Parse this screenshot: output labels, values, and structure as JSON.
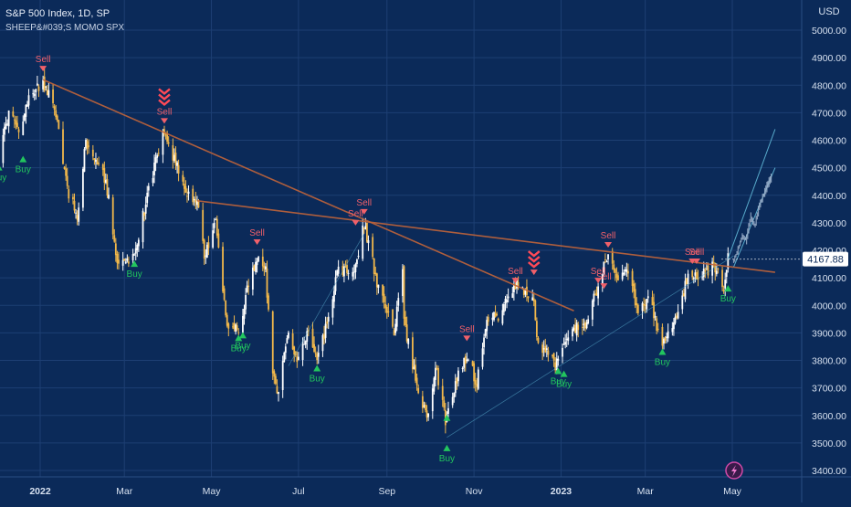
{
  "legend": {
    "title": "S&P 500 Index, 1D, SP",
    "indicator": "SHEEP&#039;S MOMO SPX"
  },
  "price_axis": {
    "currency": "USD",
    "last_price": "4167.88"
  },
  "colors": {
    "background": "#0b2a59",
    "grid": "#1d3f73",
    "up_candle": "#ffffff",
    "down_candle": "#f2b84b",
    "trendline": "#c0643a",
    "channel": "#5fb7d6",
    "buy": "#22c55e",
    "sell": "#f0606a",
    "last_price_tag": "#ffffff"
  },
  "icons": {
    "bottom_badge": "lightning-bolt-icon"
  },
  "chart_data": {
    "type": "candlestick",
    "title": "S&P 500 Index, 1D, SP",
    "ylim": [
      3350,
      5080
    ],
    "yticks": [
      3400,
      3500,
      3600,
      3700,
      3800,
      3900,
      4000,
      4100,
      4200,
      4300,
      4400,
      4500,
      4600,
      4700,
      4800,
      4900,
      5000
    ],
    "ytick_labels": [
      "3400.00",
      "3500.00",
      "3600.00",
      "3700.00",
      "3800.00",
      "3900.00",
      "4000.00",
      "4100.00",
      "4200.00",
      "4300.00",
      "4400.00",
      "4500.00",
      "4600.00",
      "4700.00",
      "4800.00",
      "4900.00",
      "5000.00"
    ],
    "x_range": [
      "2021-12-03",
      "2023-05-31"
    ],
    "x_tick_labels": [
      {
        "date": "2022-01-01",
        "label": "2022"
      },
      {
        "date": "2022-03-01",
        "label": "Mar"
      },
      {
        "date": "2022-05-01",
        "label": "May"
      },
      {
        "date": "2022-07-01",
        "label": "Jul"
      },
      {
        "date": "2022-09-01",
        "label": "Sep"
      },
      {
        "date": "2022-11-01",
        "label": "Nov"
      },
      {
        "date": "2023-01-01",
        "label": "2023"
      },
      {
        "date": "2023-03-01",
        "label": "Mar"
      },
      {
        "date": "2023-05-01",
        "label": "May"
      }
    ],
    "price_path": [
      [
        "2021-12-03",
        4540
      ],
      [
        "2021-12-10",
        4700
      ],
      [
        "2021-12-17",
        4620
      ],
      [
        "2021-12-24",
        4760
      ],
      [
        "2022-01-03",
        4810
      ],
      [
        "2022-01-12",
        4700
      ],
      [
        "2022-01-21",
        4400
      ],
      [
        "2022-01-27",
        4330
      ],
      [
        "2022-02-02",
        4590
      ],
      [
        "2022-02-10",
        4500
      ],
      [
        "2022-02-16",
        4460
      ],
      [
        "2022-02-24",
        4150
      ],
      [
        "2022-03-08",
        4180
      ],
      [
        "2022-03-18",
        4420
      ],
      [
        "2022-03-29",
        4630
      ],
      [
        "2022-04-08",
        4490
      ],
      [
        "2022-04-14",
        4400
      ],
      [
        "2022-04-21",
        4390
      ],
      [
        "2022-04-26",
        4180
      ],
      [
        "2022-05-04",
        4300
      ],
      [
        "2022-05-12",
        3930
      ],
      [
        "2022-05-20",
        3900
      ],
      [
        "2022-05-26",
        4060
      ],
      [
        "2022-06-02",
        4170
      ],
      [
        "2022-06-08",
        4120
      ],
      [
        "2022-06-13",
        3750
      ],
      [
        "2022-06-16",
        3670
      ],
      [
        "2022-06-24",
        3910
      ],
      [
        "2022-06-30",
        3790
      ],
      [
        "2022-07-08",
        3900
      ],
      [
        "2022-07-14",
        3790
      ],
      [
        "2022-07-22",
        3960
      ],
      [
        "2022-07-29",
        4130
      ],
      [
        "2022-08-09",
        4120
      ],
      [
        "2022-08-16",
        4300
      ],
      [
        "2022-08-19",
        4230
      ],
      [
        "2022-08-26",
        4060
      ],
      [
        "2022-09-06",
        3910
      ],
      [
        "2022-09-12",
        4110
      ],
      [
        "2022-09-13",
        3930
      ],
      [
        "2022-09-23",
        3690
      ],
      [
        "2022-09-30",
        3590
      ],
      [
        "2022-10-05",
        3780
      ],
      [
        "2022-10-12",
        3580
      ],
      [
        "2022-10-21",
        3750
      ],
      [
        "2022-10-27",
        3810
      ],
      [
        "2022-11-03",
        3720
      ],
      [
        "2022-11-10",
        3960
      ],
      [
        "2022-11-17",
        3950
      ],
      [
        "2022-11-25",
        4030
      ],
      [
        "2022-12-01",
        4080
      ],
      [
        "2022-12-13",
        4020
      ],
      [
        "2022-12-16",
        3850
      ],
      [
        "2022-12-22",
        3830
      ],
      [
        "2022-12-28",
        3780
      ],
      [
        "2023-01-06",
        3900
      ],
      [
        "2023-01-18",
        3930
      ],
      [
        "2023-01-24",
        4020
      ],
      [
        "2023-02-02",
        4180
      ],
      [
        "2023-02-10",
        4090
      ],
      [
        "2023-02-15",
        4150
      ],
      [
        "2023-02-24",
        3970
      ],
      [
        "2023-03-03",
        4040
      ],
      [
        "2023-03-09",
        3920
      ],
      [
        "2023-03-13",
        3850
      ],
      [
        "2023-03-22",
        3940
      ],
      [
        "2023-03-31",
        4110
      ],
      [
        "2023-04-10",
        4110
      ],
      [
        "2023-04-18",
        4150
      ],
      [
        "2023-04-25",
        4070
      ],
      [
        "2023-04-28",
        4170
      ]
    ],
    "trendlines": [
      {
        "name": "long-downtrend",
        "from": [
          "2022-01-03",
          4820
        ],
        "to": [
          "2023-01-10",
          3980
        ]
      },
      {
        "name": "upper-downtrend",
        "from": [
          "2022-04-21",
          4380
        ],
        "to": [
          "2023-05-31",
          4120
        ]
      },
      {
        "name": "rising-support",
        "from": [
          "2022-10-13",
          3520
        ],
        "to": [
          "2023-05-02",
          4180
        ]
      },
      {
        "name": "projection-upper",
        "from": [
          "2023-04-28",
          4170
        ],
        "to": [
          "2023-05-31",
          4640
        ]
      },
      {
        "name": "projection-lower",
        "from": [
          "2023-05-02",
          4140
        ],
        "to": [
          "2023-05-31",
          4500
        ]
      },
      {
        "name": "rally-support",
        "from": [
          "2022-06-24",
          3780
        ],
        "to": [
          "2022-08-16",
          4260
        ]
      }
    ],
    "forecast_path": [
      [
        "2023-05-02",
        4160
      ],
      [
        "2023-05-05",
        4200
      ],
      [
        "2023-05-08",
        4250
      ],
      [
        "2023-05-11",
        4240
      ],
      [
        "2023-05-14",
        4320
      ],
      [
        "2023-05-17",
        4290
      ],
      [
        "2023-05-20",
        4360
      ],
      [
        "2023-05-23",
        4400
      ],
      [
        "2023-05-26",
        4440
      ],
      [
        "2023-05-29",
        4470
      ]
    ],
    "signals": [
      {
        "type": "sell",
        "label": "Sell",
        "date": "2022-01-03",
        "price": 4860
      },
      {
        "type": "sell",
        "label": "Sell",
        "date": "2022-03-29",
        "price": 4670,
        "chevrons": true
      },
      {
        "type": "sell",
        "label": "Sell",
        "date": "2022-06-02",
        "price": 4230
      },
      {
        "type": "sell",
        "label": "Sell",
        "date": "2022-08-10",
        "price": 4300
      },
      {
        "type": "sell",
        "label": "Sell",
        "date": "2022-08-16",
        "price": 4340
      },
      {
        "type": "sell",
        "label": "Sell",
        "date": "2022-10-27",
        "price": 3880
      },
      {
        "type": "sell",
        "label": "Sell",
        "date": "2022-11-30",
        "price": 4090
      },
      {
        "type": "sell",
        "label": "Sell",
        "date": "2022-12-13",
        "price": 4120,
        "chevrons": true,
        "no_text": true
      },
      {
        "type": "sell",
        "label": "Sell",
        "date": "2023-01-27",
        "price": 4090
      },
      {
        "type": "sell",
        "label": "Sell",
        "date": "2023-01-31",
        "price": 4070
      },
      {
        "type": "sell",
        "label": "Sell",
        "date": "2023-02-03",
        "price": 4220
      },
      {
        "type": "sell",
        "label": "Sell",
        "date": "2023-04-03",
        "price": 4160
      },
      {
        "type": "sell",
        "label": "Sell",
        "date": "2023-04-06",
        "price": 4160
      },
      {
        "type": "buy",
        "label": "Buy",
        "date": "2021-12-03",
        "price": 4500
      },
      {
        "type": "buy",
        "label": "Buy",
        "date": "2021-12-20",
        "price": 4530
      },
      {
        "type": "buy",
        "label": "Buy",
        "date": "2022-03-08",
        "price": 4150
      },
      {
        "type": "buy",
        "label": "Buy",
        "date": "2022-05-20",
        "price": 3880
      },
      {
        "type": "buy",
        "label": "Buy",
        "date": "2022-05-23",
        "price": 3890
      },
      {
        "type": "buy",
        "label": "Buy",
        "date": "2022-07-14",
        "price": 3770
      },
      {
        "type": "buy",
        "label": "Buy",
        "date": "2022-10-13",
        "price": 3480
      },
      {
        "type": "buy",
        "label": "Buy",
        "date": "2022-10-13",
        "price": 3590,
        "no_text": true
      },
      {
        "type": "buy",
        "label": "Buy",
        "date": "2022-12-30",
        "price": 3760
      },
      {
        "type": "buy",
        "label": "Buy",
        "date": "2023-01-03",
        "price": 3750
      },
      {
        "type": "buy",
        "label": "Buy",
        "date": "2023-03-13",
        "price": 3830
      },
      {
        "type": "buy",
        "label": "Buy",
        "date": "2023-04-28",
        "price": 4060
      }
    ],
    "last_price": 4167.88
  }
}
